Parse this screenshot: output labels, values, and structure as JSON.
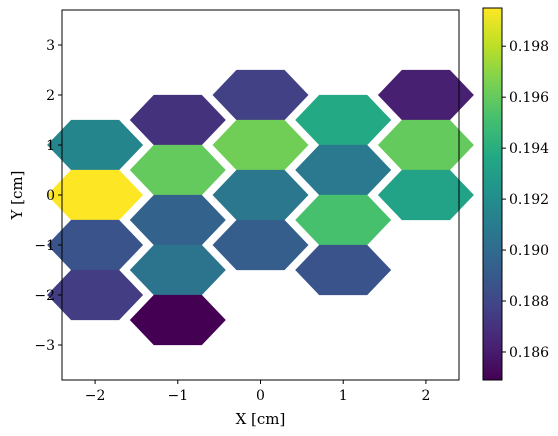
{
  "chart_data": {
    "type": "heatmap",
    "subtype": "hexagonal",
    "title": "",
    "xlabel": "X [cm]",
    "ylabel": "Y [cm]",
    "xlim": [
      -2.4,
      2.4
    ],
    "ylim": [
      -3.7,
      3.7
    ],
    "x_ticks": [
      -2,
      -1,
      0,
      1,
      2
    ],
    "x_tick_labels": [
      "−2",
      "−1",
      "0",
      "1",
      "2"
    ],
    "y_ticks": [
      -3,
      -2,
      -1,
      0,
      1,
      2,
      3
    ],
    "y_tick_labels": [
      "−3",
      "−2",
      "−1",
      "0",
      "1",
      "2",
      "3"
    ],
    "hex_radius": 0.58,
    "colormap": "viridis",
    "color_range": [
      0.1849,
      0.1995
    ],
    "colorbar_ticks": [
      0.186,
      0.188,
      0.19,
      0.192,
      0.194,
      0.196,
      0.198
    ],
    "colorbar_tick_labels": [
      "0.186",
      "0.188",
      "0.190",
      "0.192",
      "0.194",
      "0.196",
      "0.198"
    ],
    "grid": false,
    "cells": [
      {
        "x": -2.0,
        "y": 1.0,
        "value": 0.1915
      },
      {
        "x": -2.0,
        "y": 0.0,
        "value": 0.1995
      },
      {
        "x": -2.0,
        "y": -1.0,
        "value": 0.1887
      },
      {
        "x": -2.0,
        "y": -2.0,
        "value": 0.1875
      },
      {
        "x": -1.0,
        "y": 1.5,
        "value": 0.187
      },
      {
        "x": -1.0,
        "y": 0.5,
        "value": 0.196
      },
      {
        "x": -1.0,
        "y": -0.5,
        "value": 0.1895
      },
      {
        "x": -1.0,
        "y": -1.5,
        "value": 0.1905
      },
      {
        "x": -1.0,
        "y": -2.5,
        "value": 0.1849
      },
      {
        "x": 0.0,
        "y": 2.0,
        "value": 0.1877
      },
      {
        "x": 0.0,
        "y": 1.0,
        "value": 0.1963
      },
      {
        "x": 0.0,
        "y": 0.0,
        "value": 0.1907
      },
      {
        "x": 0.0,
        "y": -1.0,
        "value": 0.1892
      },
      {
        "x": 1.0,
        "y": 1.5,
        "value": 0.1937
      },
      {
        "x": 1.0,
        "y": 0.5,
        "value": 0.1908
      },
      {
        "x": 1.0,
        "y": -0.5,
        "value": 0.1952
      },
      {
        "x": 1.0,
        "y": -1.5,
        "value": 0.1887
      },
      {
        "x": 2.0,
        "y": 2.0,
        "value": 0.1862
      },
      {
        "x": 2.0,
        "y": 1.0,
        "value": 0.196
      },
      {
        "x": 2.0,
        "y": 0.0,
        "value": 0.1933
      }
    ]
  }
}
